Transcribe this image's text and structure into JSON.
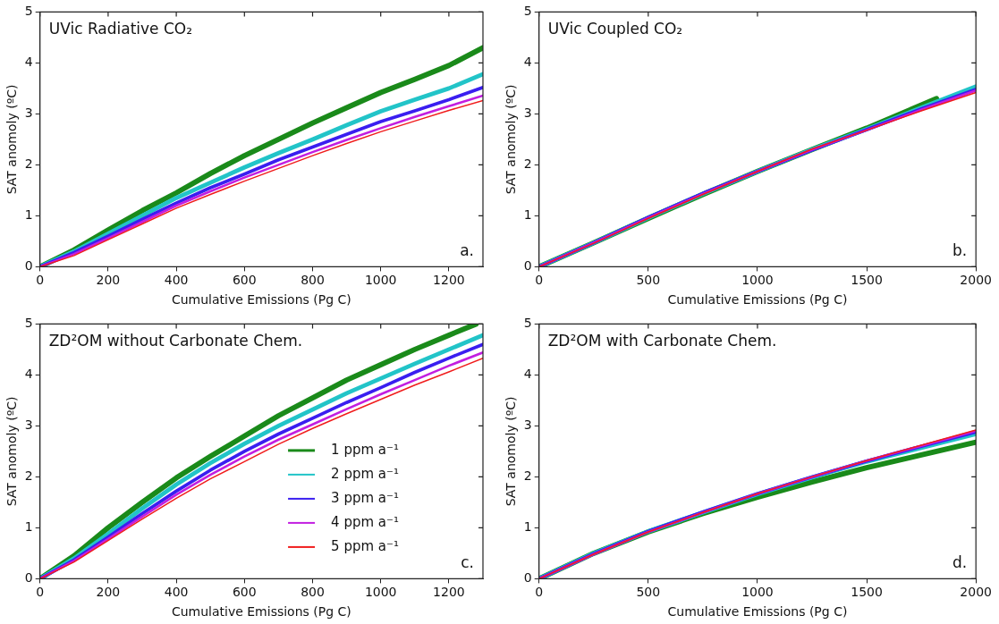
{
  "chart_data": [
    {
      "type": "line",
      "title": "UVic Radiative CO₂",
      "xlabel": "Cumulative Emissions (Pg C)",
      "ylabel": "SAT anomoly (ºC)",
      "annotations": [
        "a."
      ],
      "x": [
        0,
        100,
        200,
        300,
        400,
        500,
        600,
        700,
        800,
        900,
        1000,
        1100,
        1200,
        1300
      ],
      "xlim": [
        0,
        1300
      ],
      "xticks": [
        0,
        200,
        400,
        600,
        800,
        1000,
        1200
      ],
      "ylim": [
        0,
        5
      ],
      "yticks": [
        0,
        1,
        2,
        3,
        4,
        5
      ],
      "marker": "none",
      "line_style": "solid",
      "series": [
        {
          "color": "#1a8a1a",
          "values": [
            0,
            0.33,
            0.72,
            1.1,
            1.45,
            1.83,
            2.18,
            2.5,
            2.82,
            3.12,
            3.42,
            3.68,
            3.95,
            4.3
          ]
        },
        {
          "color": "#22c4c8",
          "values": [
            0,
            0.3,
            0.65,
            1.0,
            1.35,
            1.65,
            1.95,
            2.23,
            2.5,
            2.78,
            3.05,
            3.28,
            3.5,
            3.78
          ]
        },
        {
          "color": "#3a1ef0",
          "values": [
            0,
            0.28,
            0.6,
            0.93,
            1.25,
            1.55,
            1.82,
            2.1,
            2.35,
            2.6,
            2.85,
            3.06,
            3.28,
            3.52
          ]
        },
        {
          "color": "#c21ee0",
          "values": [
            0,
            0.25,
            0.56,
            0.88,
            1.2,
            1.48,
            1.75,
            2.0,
            2.25,
            2.49,
            2.72,
            2.94,
            3.15,
            3.36
          ]
        },
        {
          "color": "#f01c1c",
          "values": [
            0,
            0.22,
            0.53,
            0.84,
            1.15,
            1.42,
            1.68,
            1.93,
            2.18,
            2.42,
            2.65,
            2.86,
            3.07,
            3.26
          ]
        }
      ]
    },
    {
      "type": "line",
      "title": "UVic Coupled CO₂",
      "xlabel": "Cumulative Emissions (Pg C)",
      "ylabel": "SAT anomoly (ºC)",
      "annotations": [
        "b."
      ],
      "x": [
        0,
        250,
        500,
        750,
        1000,
        1250,
        1500,
        1750,
        2000
      ],
      "xlim": [
        0,
        2000
      ],
      "xticks": [
        0,
        500,
        1000,
        1500,
        2000
      ],
      "ylim": [
        0,
        5
      ],
      "yticks": [
        0,
        1,
        2,
        3,
        4,
        5
      ],
      "marker": "none",
      "line_style": "solid",
      "series": [
        {
          "color": "#1a8a1a",
          "x": [
            0,
            250,
            500,
            750,
            1000,
            1250,
            1500,
            1820
          ],
          "values": [
            0,
            0.47,
            0.95,
            1.42,
            1.87,
            2.3,
            2.72,
            3.3
          ]
        },
        {
          "color": "#22c4c8",
          "values": [
            0,
            0.47,
            0.96,
            1.43,
            1.87,
            2.3,
            2.7,
            3.12,
            3.54
          ]
        },
        {
          "color": "#3a1ef0",
          "values": [
            0,
            0.47,
            0.97,
            1.44,
            1.87,
            2.29,
            2.69,
            3.1,
            3.48
          ]
        },
        {
          "color": "#c21ee0",
          "values": [
            0,
            0.47,
            0.96,
            1.43,
            1.87,
            2.3,
            2.68,
            3.08,
            3.46
          ]
        },
        {
          "color": "#f01c1c",
          "values": [
            0,
            0.46,
            0.95,
            1.42,
            1.87,
            2.31,
            2.68,
            3.06,
            3.42
          ]
        }
      ]
    },
    {
      "type": "line",
      "title": "ZD²OM without Carbonate Chem.",
      "xlabel": "Cumulative Emissions (Pg C)",
      "ylabel": "SAT anomoly (ºC)",
      "annotations": [
        "c."
      ],
      "legend": "bottom right",
      "x": [
        0,
        100,
        200,
        300,
        400,
        500,
        600,
        700,
        800,
        900,
        1000,
        1100,
        1200,
        1300
      ],
      "xlim": [
        0,
        1300
      ],
      "xticks": [
        0,
        200,
        400,
        600,
        800,
        1000,
        1200
      ],
      "ylim": [
        0,
        5
      ],
      "yticks": [
        0,
        1,
        2,
        3,
        4,
        5
      ],
      "marker": "none",
      "line_style": "solid",
      "series": [
        {
          "name": "1 ppm a⁻¹",
          "color": "#1a8a1a",
          "x": [
            0,
            100,
            200,
            300,
            400,
            500,
            600,
            700,
            800,
            900,
            1000,
            1100,
            1200,
            1280
          ],
          "values": [
            0,
            0.45,
            1.0,
            1.5,
            1.98,
            2.4,
            2.8,
            3.2,
            3.55,
            3.9,
            4.2,
            4.5,
            4.78,
            5.0
          ]
        },
        {
          "name": "2 ppm a⁻¹",
          "color": "#22c4c8",
          "values": [
            0,
            0.4,
            0.88,
            1.38,
            1.85,
            2.27,
            2.65,
            3.0,
            3.32,
            3.64,
            3.93,
            4.22,
            4.5,
            4.78
          ]
        },
        {
          "name": "3 ppm a⁻¹",
          "color": "#3a1ef0",
          "values": [
            0,
            0.37,
            0.82,
            1.28,
            1.72,
            2.13,
            2.5,
            2.84,
            3.15,
            3.46,
            3.75,
            4.05,
            4.33,
            4.6
          ]
        },
        {
          "name": "4 ppm a⁻¹",
          "color": "#c21ee0",
          "values": [
            0,
            0.35,
            0.78,
            1.22,
            1.65,
            2.04,
            2.4,
            2.73,
            3.03,
            3.33,
            3.62,
            3.9,
            4.18,
            4.44
          ]
        },
        {
          "name": "5 ppm a⁻¹",
          "color": "#f01c1c",
          "values": [
            0,
            0.33,
            0.75,
            1.17,
            1.58,
            1.96,
            2.3,
            2.64,
            2.95,
            3.24,
            3.52,
            3.8,
            4.06,
            4.33
          ]
        }
      ]
    },
    {
      "type": "line",
      "title": "ZD²OM with Carbonate Chem.",
      "xlabel": "Cumulative Emissions (Pg C)",
      "ylabel": "SAT anomoly (ºC)",
      "annotations": [
        "d."
      ],
      "x": [
        0,
        250,
        500,
        750,
        1000,
        1250,
        1500,
        1750,
        2000
      ],
      "xlim": [
        0,
        2000
      ],
      "xticks": [
        0,
        500,
        1000,
        1500,
        2000
      ],
      "ylim": [
        0,
        5
      ],
      "yticks": [
        0,
        1,
        2,
        3,
        4,
        5
      ],
      "marker": "none",
      "line_style": "solid",
      "series": [
        {
          "color": "#1a8a1a",
          "values": [
            0,
            0.5,
            0.92,
            1.28,
            1.6,
            1.9,
            2.18,
            2.43,
            2.68
          ]
        },
        {
          "color": "#22c4c8",
          "values": [
            0,
            0.5,
            0.93,
            1.3,
            1.66,
            1.99,
            2.3,
            2.57,
            2.84
          ]
        },
        {
          "color": "#3a1ef0",
          "values": [
            0,
            0.49,
            0.93,
            1.31,
            1.67,
            2.0,
            2.31,
            2.6,
            2.88
          ]
        },
        {
          "color": "#c21ee0",
          "values": [
            0,
            0.48,
            0.92,
            1.3,
            1.67,
            2.0,
            2.32,
            2.61,
            2.9
          ]
        },
        {
          "color": "#f01c1c",
          "values": [
            0,
            0.48,
            0.92,
            1.3,
            1.67,
            2.0,
            2.32,
            2.62,
            2.92
          ]
        }
      ]
    }
  ]
}
